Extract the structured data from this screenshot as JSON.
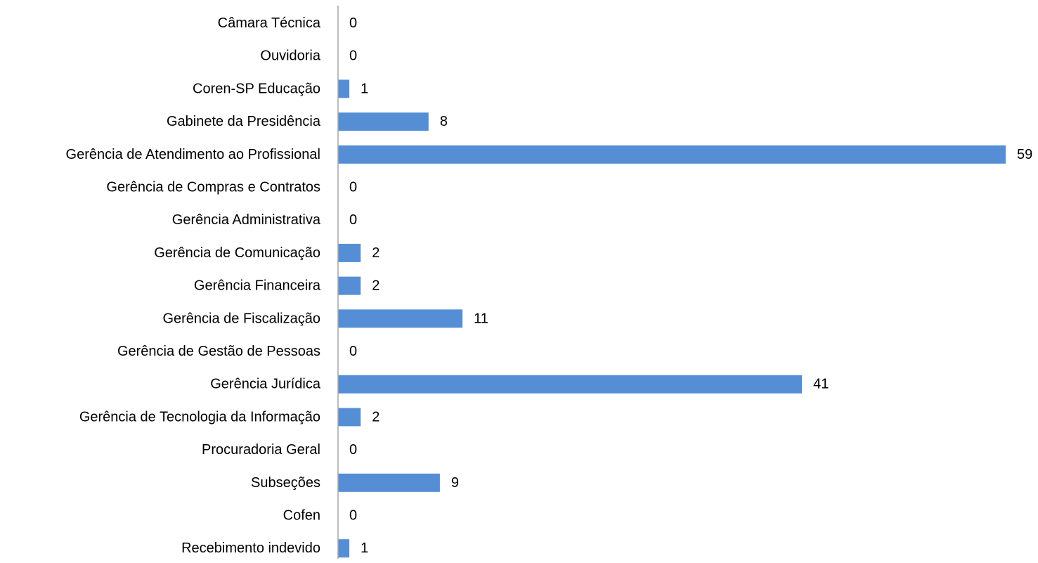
{
  "chart_data": {
    "type": "bar",
    "orientation": "horizontal",
    "categories": [
      "Câmara Técnica",
      "Ouvidoria",
      "Coren-SP Educação",
      "Gabinete da Presidência",
      "Gerência de Atendimento ao Profissional",
      "Gerência de Compras e Contratos",
      "Gerência Administrativa",
      "Gerência de Comunicação",
      "Gerência Financeira",
      "Gerência de Fiscalização",
      "Gerência de Gestão de Pessoas",
      "Gerência Jurídica",
      "Gerência de Tecnologia da Informação",
      "Procuradoria Geral",
      "Subseções",
      "Cofen",
      "Recebimento indevido"
    ],
    "values": [
      0,
      0,
      1,
      8,
      59,
      0,
      0,
      2,
      2,
      11,
      0,
      41,
      2,
      0,
      9,
      0,
      1
    ],
    "xlim": [
      0,
      59
    ],
    "grid": false,
    "legend": "none",
    "data_labels": true,
    "bar_color": "#558ED5",
    "axis_color": "#A6A6A6"
  }
}
